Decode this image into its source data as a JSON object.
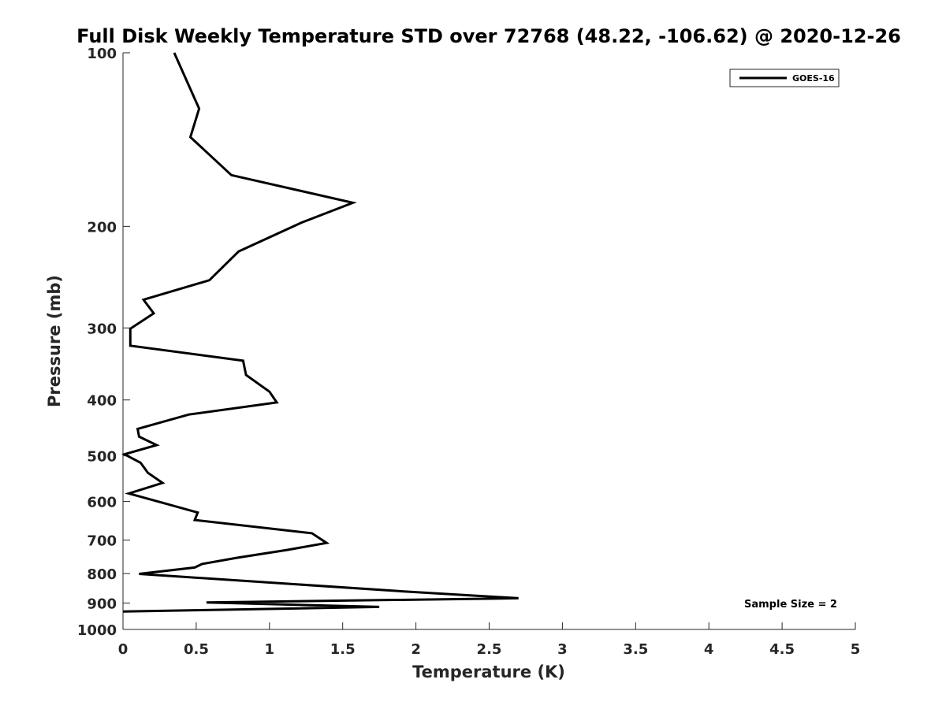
{
  "chart_data": {
    "type": "line",
    "title": "Full Disk Weekly Temperature STD over 72768 (48.22, -106.62) @ 2020-12-26",
    "xlabel": "Temperature (K)",
    "ylabel": "Pressure (mb)",
    "xlim": [
      0,
      5
    ],
    "ylim": [
      100,
      1000
    ],
    "yscale": "log",
    "yreversed": true,
    "grid": false,
    "legend_location": "top-right",
    "xticks": [
      0,
      0.5,
      1,
      1.5,
      2,
      2.5,
      3,
      3.5,
      4,
      4.5,
      5
    ],
    "xtick_labels": [
      "0",
      "0.5",
      "1",
      "1.5",
      "2",
      "2.5",
      "3",
      "3.5",
      "4",
      "4.5",
      "5"
    ],
    "yticks": [
      100,
      200,
      300,
      400,
      500,
      600,
      700,
      800,
      900,
      1000
    ],
    "ytick_labels": [
      "100",
      "200",
      "300",
      "400",
      "500",
      "600",
      "700",
      "800",
      "900",
      "1000"
    ],
    "series": [
      {
        "name": "GOES-16",
        "color": "#000000",
        "x": [
          0.35,
          0.52,
          0.46,
          0.74,
          1.57,
          1.22,
          0.79,
          0.59,
          0.14,
          0.21,
          0.05,
          0.05,
          0.82,
          0.84,
          1.0,
          1.05,
          0.45,
          0.1,
          0.11,
          0.23,
          0.01,
          0.12,
          0.17,
          0.27,
          0.04,
          0.26,
          0.51,
          0.49,
          1.29,
          1.39,
          1.12,
          0.78,
          0.54,
          0.49,
          0.11,
          1.88,
          2.7,
          0.57,
          1.75,
          0.0
        ],
        "pressure": [
          100,
          125,
          140,
          163,
          182,
          197,
          221,
          248,
          268,
          283,
          301,
          322,
          342,
          362,
          387,
          404,
          424,
          449,
          463,
          479,
          497,
          514,
          535,
          557,
          581,
          602,
          627,
          646,
          681,
          708,
          728,
          751,
          770,
          781,
          801,
          858,
          883,
          898,
          914,
          931
        ]
      }
    ],
    "annotation": "Sample Size = 2"
  }
}
